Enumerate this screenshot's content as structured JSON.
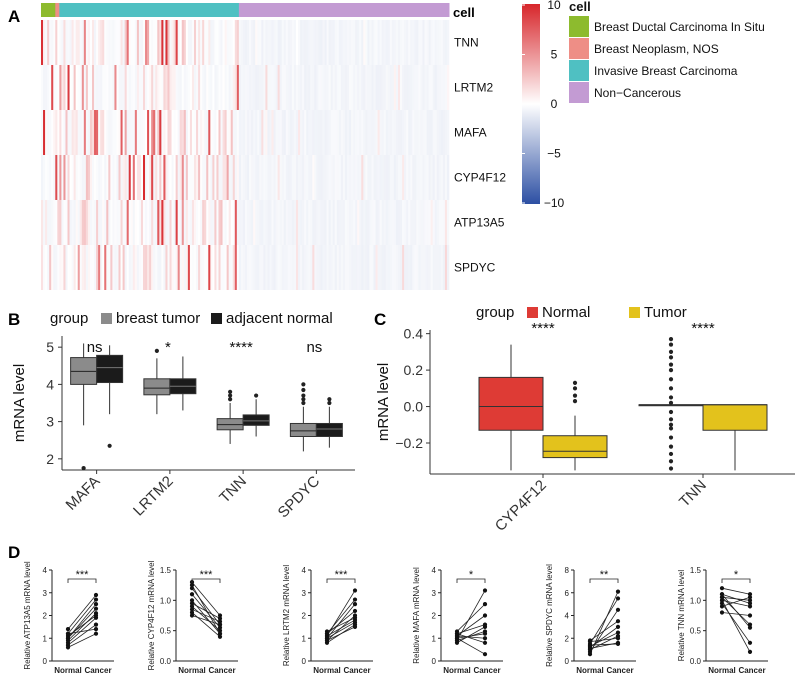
{
  "panel_labels": {
    "a": "A",
    "b": "B",
    "c": "C",
    "d": "D"
  },
  "colors": {
    "heat_low": "#2c4fa3",
    "heat_mid": "#ffffff",
    "heat_high": "#d7262b",
    "dcis": "#8dbb2e",
    "neoplasm": "#ee8e86",
    "invasive": "#4fc0c2",
    "noncancer": "#c39bd3",
    "breast_tumor": "#8b8b8b",
    "adjacent_normal": "#1b1b1b",
    "normal": "#de3b35",
    "tumor": "#e3c21c"
  },
  "chart_data": [
    {
      "type": "heatmap",
      "annotation_title": "cell",
      "rows": [
        "TNN",
        "LRTM2",
        "MAFA",
        "CYP4F12",
        "ATP13A5",
        "SPDYC"
      ],
      "column_groups": [
        {
          "label": "Breast Ductal Carcinoma In Situ",
          "share": 0.035,
          "color": "#8dbb2e"
        },
        {
          "label": "Breast Neoplasm, NOS",
          "share": 0.01,
          "color": "#ee8e86"
        },
        {
          "label": "Invasive Breast Carcinoma",
          "share": 0.44,
          "color": "#4fc0c2"
        },
        {
          "label": "Non−Cancerous",
          "share": 0.515,
          "color": "#c39bd3"
        }
      ],
      "n_columns": 200,
      "colorbar": {
        "range": [
          -10,
          10
        ],
        "ticks": [
          "10",
          "5",
          "0",
          "−5",
          "−10"
        ]
      }
    },
    {
      "type": "box",
      "legend_title": "group",
      "legend": [
        "breast tumor",
        "adjacent normal"
      ],
      "ylabel": "mRNA level",
      "ylim": [
        1.7,
        5.3
      ],
      "yticks": [
        "2",
        "3",
        "4",
        "5"
      ],
      "categories": [
        "MAFA",
        "LRTM2",
        "TNN",
        "SPDYC"
      ],
      "significance": [
        "ns",
        "*",
        "****",
        "ns"
      ],
      "series": [
        {
          "name": "breast tumor",
          "boxes": [
            {
              "q1": 4.0,
              "median": 4.35,
              "q3": 4.72,
              "lo": 2.9,
              "hi": 5.1,
              "out": [
                1.75
              ]
            },
            {
              "q1": 3.72,
              "median": 3.9,
              "q3": 4.15,
              "lo": 3.2,
              "hi": 4.7,
              "out": [
                4.9
              ]
            },
            {
              "q1": 2.78,
              "median": 2.92,
              "q3": 3.08,
              "lo": 2.4,
              "hi": 3.5,
              "out": [
                3.6,
                3.7,
                3.8
              ]
            },
            {
              "q1": 2.6,
              "median": 2.75,
              "q3": 2.95,
              "lo": 2.2,
              "hi": 3.4,
              "out": [
                3.5,
                3.6,
                3.7,
                3.85,
                4.0
              ]
            }
          ]
        },
        {
          "name": "adjacent normal",
          "boxes": [
            {
              "q1": 4.05,
              "median": 4.45,
              "q3": 4.78,
              "lo": 3.2,
              "hi": 5.05,
              "out": [
                2.35
              ]
            },
            {
              "q1": 3.75,
              "median": 3.95,
              "q3": 4.15,
              "lo": 3.3,
              "hi": 4.75,
              "out": []
            },
            {
              "q1": 2.9,
              "median": 3.02,
              "q3": 3.18,
              "lo": 2.6,
              "hi": 3.6,
              "out": [
                3.7
              ]
            },
            {
              "q1": 2.6,
              "median": 2.8,
              "q3": 2.95,
              "lo": 2.3,
              "hi": 3.4,
              "out": [
                3.5,
                3.6
              ]
            }
          ]
        }
      ]
    },
    {
      "type": "box",
      "legend_title": "group",
      "legend": [
        "Normal",
        "Tumor"
      ],
      "ylabel": "mRNA level",
      "ylim": [
        -0.37,
        0.42
      ],
      "yticks": [
        "0.4",
        "0.2",
        "0.0",
        "−0.2"
      ],
      "ytick_values": [
        0.4,
        0.2,
        0.0,
        -0.2
      ],
      "categories": [
        "CYP4F12",
        "TNN"
      ],
      "significance": [
        "****",
        "****"
      ],
      "series": [
        {
          "name": "Normal",
          "boxes": [
            {
              "q1": -0.13,
              "median": 0.0,
              "q3": 0.16,
              "lo": -0.35,
              "hi": 0.34,
              "out": []
            },
            {
              "q1": 0.01,
              "median": 0.01,
              "q3": 0.01,
              "lo": 0.01,
              "hi": 0.01,
              "out": [
                0.37,
                0.34,
                0.3,
                0.27,
                0.23,
                0.2,
                0.15,
                0.1,
                0.05,
                0.02,
                -0.03,
                -0.07,
                -0.1,
                -0.12,
                -0.17,
                -0.22,
                -0.26,
                -0.3,
                -0.34
              ]
            }
          ]
        },
        {
          "name": "Tumor",
          "boxes": [
            {
              "q1": -0.28,
              "median": -0.245,
              "q3": -0.16,
              "lo": -0.35,
              "hi": -0.05,
              "out": [
                0.13,
                0.1,
                0.06,
                0.03
              ]
            },
            {
              "q1": -0.13,
              "median": 0.01,
              "q3": 0.01,
              "lo": -0.35,
              "hi": 0.01,
              "out": []
            }
          ]
        }
      ]
    },
    {
      "type": "paired-line",
      "xlabels": [
        "Normal",
        "Cancer"
      ],
      "panels": [
        {
          "ylabel": "Relative ATP13A5 mRNA level",
          "ylim": [
            0,
            4
          ],
          "yticks": [
            "0",
            "1",
            "2",
            "3",
            "4"
          ],
          "sig": "***",
          "pairs": [
            [
              0.7,
              1.6
            ],
            [
              0.8,
              1.9
            ],
            [
              0.9,
              2.1
            ],
            [
              1.0,
              2.3
            ],
            [
              1.0,
              2.5
            ],
            [
              1.1,
              2.0
            ],
            [
              1.2,
              2.7
            ],
            [
              1.2,
              1.4
            ],
            [
              1.4,
              2.9
            ],
            [
              0.6,
              1.2
            ]
          ]
        },
        {
          "ylabel": "Relative CYP4F12 mRNA level",
          "ylim": [
            0,
            1.5
          ],
          "yticks": [
            "0.0",
            "0.5",
            "1.0",
            "1.5"
          ],
          "sig": "***",
          "pairs": [
            [
              1.3,
              0.75
            ],
            [
              1.2,
              0.6
            ],
            [
              1.1,
              0.55
            ],
            [
              1.0,
              0.45
            ],
            [
              0.95,
              0.7
            ],
            [
              0.9,
              0.5
            ],
            [
              0.85,
              0.65
            ],
            [
              0.8,
              0.4
            ],
            [
              0.75,
              0.6
            ],
            [
              1.25,
              0.45
            ]
          ]
        },
        {
          "ylabel": "Relative LRTM2 mRNA level",
          "ylim": [
            0,
            4
          ],
          "yticks": [
            "0",
            "1",
            "2",
            "3",
            "4"
          ],
          "sig": "***",
          "pairs": [
            [
              0.8,
              1.6
            ],
            [
              0.9,
              2.0
            ],
            [
              1.0,
              2.5
            ],
            [
              1.0,
              1.7
            ],
            [
              1.1,
              3.1
            ],
            [
              1.1,
              1.8
            ],
            [
              1.2,
              2.2
            ],
            [
              1.3,
              1.9
            ],
            [
              0.9,
              1.5
            ],
            [
              1.2,
              2.7
            ]
          ]
        },
        {
          "ylabel": "Relative MAFA mRNA level",
          "ylim": [
            0,
            4
          ],
          "yticks": [
            "0",
            "1",
            "2",
            "3",
            "4"
          ],
          "sig": "*",
          "pairs": [
            [
              0.8,
              1.5
            ],
            [
              0.9,
              3.1
            ],
            [
              1.0,
              0.3
            ],
            [
              1.0,
              1.2
            ],
            [
              1.1,
              2.0
            ],
            [
              1.2,
              0.8
            ],
            [
              1.2,
              1.6
            ],
            [
              1.3,
              2.5
            ],
            [
              1.1,
              1.0
            ],
            [
              0.9,
              1.3
            ]
          ]
        },
        {
          "ylabel": "Relative SPDYC mRNA level",
          "ylim": [
            0,
            8
          ],
          "yticks": [
            "0",
            "2",
            "4",
            "6",
            "8"
          ],
          "sig": "**",
          "pairs": [
            [
              0.6,
              6.1
            ],
            [
              0.8,
              4.5
            ],
            [
              1.0,
              2.2
            ],
            [
              1.1,
              1.6
            ],
            [
              1.2,
              3.0
            ],
            [
              1.3,
              2.5
            ],
            [
              1.4,
              1.5
            ],
            [
              1.5,
              5.5
            ],
            [
              1.7,
              2.0
            ],
            [
              1.8,
              3.5
            ]
          ]
        },
        {
          "ylabel": "Relative TNN mRNA level",
          "ylim": [
            0,
            1.5
          ],
          "yticks": [
            "0.0",
            "0.5",
            "1.0",
            "1.5"
          ],
          "sig": "*",
          "pairs": [
            [
              1.2,
              1.1
            ],
            [
              1.1,
              0.55
            ],
            [
              1.05,
              1.0
            ],
            [
              1.0,
              0.9
            ],
            [
              0.95,
              0.3
            ],
            [
              0.9,
              1.05
            ],
            [
              1.0,
              0.15
            ],
            [
              1.1,
              0.95
            ],
            [
              0.8,
              0.75
            ],
            [
              1.05,
              0.6
            ]
          ]
        }
      ]
    }
  ]
}
